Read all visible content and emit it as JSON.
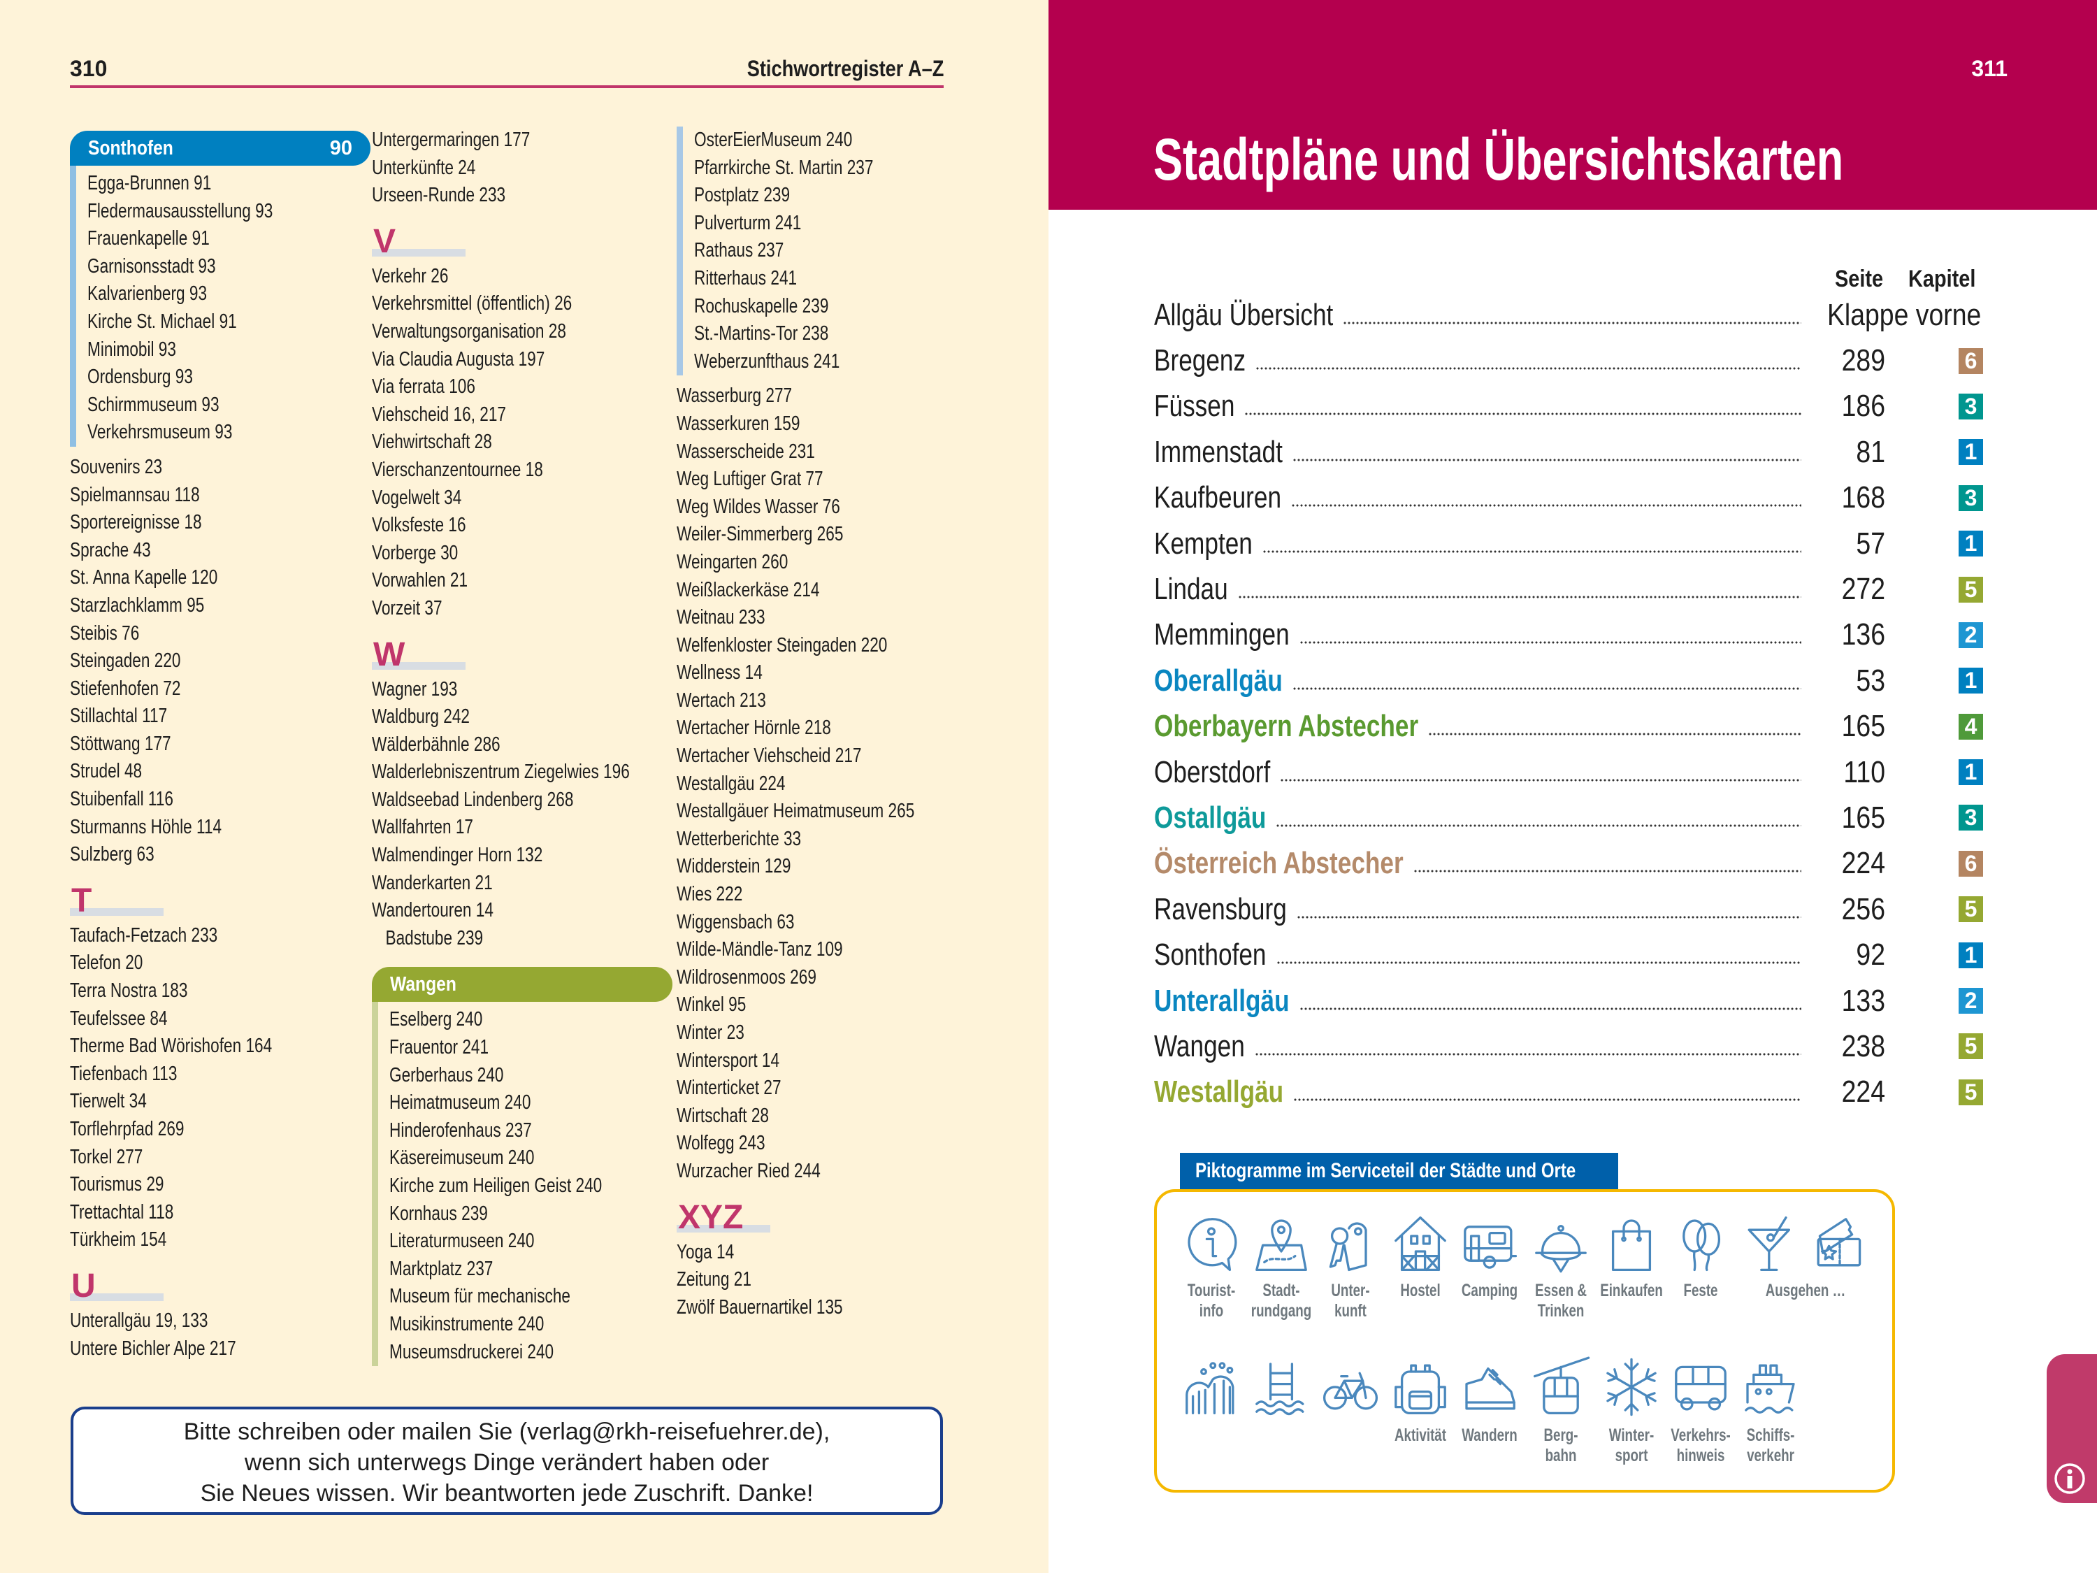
{
  "left_page": {
    "page_number": "310",
    "running_head": "Stichwortregister A–Z",
    "accent_color": "#c0356b",
    "index": {
      "columns": [
        [
          {
            "kind": "group",
            "title": "Sonthofen",
            "page": "90",
            "color": "#0080c0",
            "bar": "#8fbfe3",
            "items": [
              "Egga-Brunnen 91",
              "Fledermausausstellung 93",
              "Frauenkapelle 91",
              "Garnisonsstadt 93",
              "Kalvarienberg 93",
              "Kirche St. Michael 91",
              "Minimobil 93",
              "Ordensburg 93",
              "Schirmmuseum 93",
              "Verkehrsmuseum 93"
            ]
          },
          {
            "kind": "entries",
            "items": [
              "Souvenirs 23",
              "Spielmannsau 118",
              "Sportereignisse 18",
              "Sprache 43",
              "St. Anna Kapelle 120",
              "Starzlachklamm 95",
              "Steibis 76",
              "Steingaden 220",
              "Stiefenhofen 72",
              "Stillachtal 117",
              "Stöttwang 177",
              "Strudel 48",
              "Stuibenfall 116",
              "Sturmanns Höhle 114",
              "Sulzberg 63"
            ]
          },
          {
            "kind": "letter",
            "letter": "T"
          },
          {
            "kind": "entries",
            "items": [
              "Taufach-Fetzach 233",
              "Telefon 20",
              "Terra Nostra 183",
              "Teufelssee 84",
              "Therme Bad Wörishofen 164",
              "Tiefenbach 113",
              "Tierwelt 34",
              "Torflehrpfad 269",
              "Torkel 277",
              "Tourismus 29",
              "Trettachtal 118",
              "Türkheim 154"
            ]
          },
          {
            "kind": "letter",
            "letter": "U"
          },
          {
            "kind": "entries",
            "items": [
              "Unterallgäu 19, 133",
              "Untere Bichler Alpe 217"
            ]
          }
        ],
        [
          {
            "kind": "entries",
            "items": [
              "Untergermaringen 177",
              "Unterkünfte 24",
              "Urseen-Runde 233"
            ]
          },
          {
            "kind": "letter",
            "letter": "V"
          },
          {
            "kind": "entries",
            "items": [
              "Verkehr 26",
              "Verkehrsmittel (öffentlich) 26",
              "Verwaltungsorganisation 28",
              "Via Claudia Augusta 197",
              "Via ferrata 106",
              "Viehscheid 16, 217",
              "Viehwirtschaft 28",
              "Vierschanzentournee 18",
              "Vogelwelt 34",
              "Volksfeste 16",
              "Vorberge 30",
              "Vorwahlen 21",
              "Vorzeit 37"
            ]
          },
          {
            "kind": "letter",
            "letter": "W"
          },
          {
            "kind": "entries",
            "items": [
              "Wagner 193",
              "Waldburg 242",
              "Wälderbähnle 286",
              "Walderlebniszentrum Ziegelwies 196",
              "Waldseebad Lindenberg 268",
              "Wallfahrten 17",
              "Walmendinger Horn 132",
              "Wanderkarten 21",
              "Wandertouren 14"
            ]
          },
          {
            "kind": "subentries",
            "items": [
              "Badstube 239"
            ]
          },
          {
            "kind": "group",
            "title": "Wangen",
            "page": "",
            "color": "#95a832",
            "bar": "#cbd39a",
            "items": [
              "Eselberg 240",
              "Frauentor 241",
              "Gerberhaus 240",
              "Heimatmuseum 240",
              "Hinderofenhaus 237",
              "Käsereimuseum 240",
              "Kirche zum Heiligen Geist 240",
              "Kornhaus 239",
              "Literaturmuseen 240",
              "Marktplatz 237",
              "Museum für mechanische",
              "Musikinstrumente 240",
              "Museumsdruckerei 240"
            ]
          }
        ],
        [
          {
            "kind": "sub",
            "bar": "#a8c8e6",
            "items": [
              "OsterEierMuseum 240",
              "Pfarrkirche St. Martin 237",
              "Postplatz 239",
              "Pulverturm 241",
              "Rathaus 237",
              "Ritterhaus 241",
              "Rochuskapelle 239",
              "St.-Martins-Tor 238",
              "Weberzunfthaus 241"
            ]
          },
          {
            "kind": "entries",
            "items": [
              "Wasserburg 277",
              "Wasserkuren 159",
              "Wasserscheide 231",
              "Weg Luftiger Grat 77",
              "Weg Wildes Wasser 76",
              "Weiler-Simmerberg 265",
              "Weingarten 260",
              "Weißlackerkäse 214",
              "Weitnau 233",
              "Welfenkloster Steingaden 220",
              "Wellness 14",
              "Wertach 213",
              "Wertacher Hörnle 218",
              "Wertacher Viehscheid 217",
              "Westallgäu 224",
              "Westallgäuer Heimatmuseum 265",
              "Wetterberichte 33",
              "Widderstein 129",
              "Wies 222",
              "Wiggensbach 63",
              "Wilde-Mändle-Tanz 109",
              "Wildrosenmoos 269",
              "Winkel 95",
              "Winter 23",
              "Wintersport 14",
              "Winterticket 27",
              "Wirtschaft 28",
              "Wolfegg 243",
              "Wurzacher Ried 244"
            ]
          },
          {
            "kind": "letter",
            "letter": "XYZ"
          },
          {
            "kind": "entries",
            "items": [
              "Yoga 14",
              "Zeitung 21",
              "Zwölf Bauernartikel 135"
            ]
          }
        ]
      ]
    },
    "notice": {
      "lines": [
        "Bitte schreiben oder mailen Sie (verlag@rkh-reisefuehrer.de),",
        "wenn sich unterwegs Dinge verändert haben oder",
        "Sie Neues wissen. Wir beantworten jede Zuschrift. Danke!"
      ]
    }
  },
  "right_page": {
    "page_number": "311",
    "header_color": "#b4004e",
    "title": "Stadtpläne und Übersichtskarten",
    "table": {
      "col_page": "Seite",
      "col_chapter": "Kapitel",
      "rows": [
        {
          "name": "Allgäu Übersicht",
          "page": "Klappe vorne",
          "chapter": null
        },
        {
          "name": "Bregenz",
          "page": "289",
          "chapter": "6",
          "chapter_color": "#b48561"
        },
        {
          "name": "Füssen",
          "page": "186",
          "chapter": "3",
          "chapter_color": "#00968f"
        },
        {
          "name": "Immenstadt",
          "page": "81",
          "chapter": "1",
          "chapter_color": "#0080c0"
        },
        {
          "name": "Kaufbeuren",
          "page": "168",
          "chapter": "3",
          "chapter_color": "#00968f"
        },
        {
          "name": "Kempten",
          "page": "57",
          "chapter": "1",
          "chapter_color": "#0080c0"
        },
        {
          "name": "Lindau",
          "page": "272",
          "chapter": "5",
          "chapter_color": "#95a832"
        },
        {
          "name": "Memmingen",
          "page": "136",
          "chapter": "2",
          "chapter_color": "#1e96d2"
        },
        {
          "name": "Oberallgäu",
          "page": "53",
          "chapter": "1",
          "chapter_color": "#0080c0",
          "name_color": "#0a86c0"
        },
        {
          "name": "Oberbayern Abstecher",
          "page": "165",
          "chapter": "4",
          "chapter_color": "#4f9a3a",
          "name_color": "#5a9a30"
        },
        {
          "name": "Oberstdorf",
          "page": "110",
          "chapter": "1",
          "chapter_color": "#0080c0"
        },
        {
          "name": "Ostallgäu",
          "page": "165",
          "chapter": "3",
          "chapter_color": "#00968f",
          "name_color": "#0e9a9a"
        },
        {
          "name": "Österreich Abstecher",
          "page": "224",
          "chapter": "6",
          "chapter_color": "#b48561",
          "name_color": "#b48a6a"
        },
        {
          "name": "Ravensburg",
          "page": "256",
          "chapter": "5",
          "chapter_color": "#95a832"
        },
        {
          "name": "Sonthofen",
          "page": "92",
          "chapter": "1",
          "chapter_color": "#0080c0"
        },
        {
          "name": "Unterallgäu",
          "page": "133",
          "chapter": "2",
          "chapter_color": "#1e96d2",
          "name_color": "#0a86c0"
        },
        {
          "name": "Wangen",
          "page": "238",
          "chapter": "5",
          "chapter_color": "#95a832"
        },
        {
          "name": "Westallgäu",
          "page": "224",
          "chapter": "5",
          "chapter_color": "#95a832",
          "name_color": "#95a832"
        }
      ]
    },
    "pictograms": {
      "title": "Piktogramme im Serviceteil der Städte und Orte",
      "border_color": "#f5b800",
      "icon_color": "#4a88bd",
      "row1": [
        {
          "icon": "info-icon",
          "label": [
            "Tourist-",
            "info"
          ]
        },
        {
          "icon": "map-pin-icon",
          "label": [
            "Stadt-",
            "rundgang"
          ]
        },
        {
          "icon": "keys-icon",
          "label": [
            "Unter-",
            "kunft"
          ]
        },
        {
          "icon": "house-icon",
          "label": [
            "Hostel"
          ]
        },
        {
          "icon": "caravan-icon",
          "label": [
            "Camping"
          ]
        },
        {
          "icon": "cloche-icon",
          "label": [
            "Essen &",
            "Trinken"
          ]
        },
        {
          "icon": "shopping-bag-icon",
          "label": [
            "Einkaufen"
          ]
        },
        {
          "icon": "balloons-icon",
          "label": [
            "Feste"
          ]
        },
        {
          "icon": "cocktail-icon",
          "label": [
            "Ausgehen …"
          ]
        },
        {
          "icon": "ticket-icon",
          "label": []
        }
      ],
      "row2": [
        {
          "icon": "rollercoaster-icon",
          "label": []
        },
        {
          "icon": "pool-ladder-icon",
          "label": []
        },
        {
          "icon": "bicycle-icon",
          "label": []
        },
        {
          "icon": "backpack-icon",
          "label": [
            "Aktivität"
          ]
        },
        {
          "icon": "hiking-shoe-icon",
          "label": [
            "Wandern"
          ]
        },
        {
          "icon": "cable-car-icon",
          "label": [
            "Berg-",
            "bahn"
          ]
        },
        {
          "icon": "snowflake-icon",
          "label": [
            "Winter-",
            "sport"
          ]
        },
        {
          "icon": "bus-icon",
          "label": [
            "Verkehrs-",
            "hinweis"
          ]
        },
        {
          "icon": "ship-icon",
          "label": [
            "Schiffs-",
            "verkehr"
          ]
        }
      ]
    },
    "side_tab": {
      "icon": "info-circle-icon",
      "color": "#c03a6a"
    }
  }
}
